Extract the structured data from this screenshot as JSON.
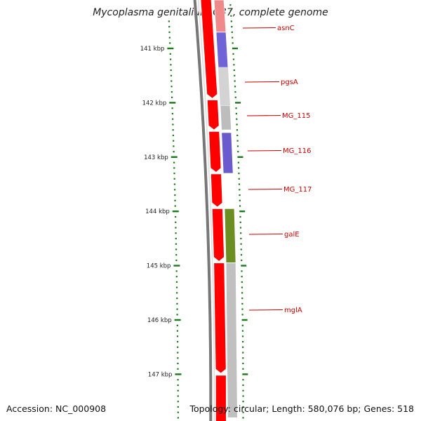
{
  "title": "Mycoplasma genitalium G37, complete genome",
  "footer": {
    "accession": "Accession: NC_000908",
    "topology": "Topology: circular; Length: 580,076 bp; Genes: 518"
  },
  "axis": {
    "unit": "kbp",
    "major_ticks": [
      "141 kbp",
      "142 kbp",
      "143 kbp",
      "144 kbp",
      "145 kbp",
      "146 kbp",
      "147 kbp"
    ]
  },
  "genes": [
    {
      "name": "asnC",
      "color": "#f08a8a",
      "start_kbp": 140.0,
      "end_kbp": 140.7
    },
    {
      "name": "pgsA",
      "color": "#7063d8",
      "start_kbp": 140.7,
      "end_kbp": 141.35
    },
    {
      "name": "MG_115",
      "color": "#bdbdbd",
      "start_kbp": 142.05,
      "end_kbp": 142.5
    },
    {
      "name": "MG_116",
      "color": "#6a5acd",
      "start_kbp": 142.55,
      "end_kbp": 143.3
    },
    {
      "name": "MG_117",
      "color": "",
      "start_kbp": 143.3,
      "end_kbp": 143.95
    },
    {
      "name": "galE",
      "color": "#6b8e23",
      "start_kbp": 143.95,
      "end_kbp": 144.95
    },
    {
      "name": "mglA",
      "color": "#c0c0c0",
      "start_kbp": 144.95,
      "end_kbp": 147.8
    }
  ],
  "colors": {
    "backbone": "#777777",
    "forward_strand": "#ff0000",
    "reverse_strand": "#c8c8c8",
    "ticks": "#1a7a1a",
    "labels": "#cc0000"
  }
}
